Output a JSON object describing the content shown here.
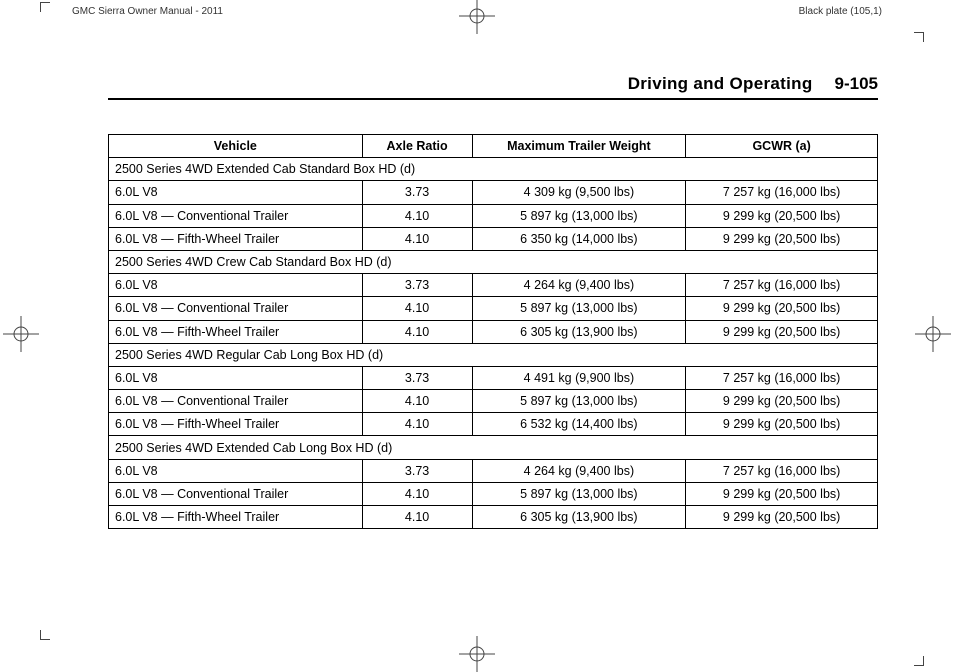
{
  "header": {
    "left": "GMC Sierra Owner Manual - 2011",
    "right": "Black plate (105,1)"
  },
  "section": {
    "title": "Driving and Operating",
    "page": "9-105"
  },
  "table": {
    "columns": [
      "Vehicle",
      "Axle Ratio",
      "Maximum Trailer Weight",
      "GCWR (a)"
    ],
    "groups": [
      {
        "label": "2500 Series 4WD Extended Cab Standard Box HD (d)",
        "rows": [
          {
            "vehicle": "6.0L V8",
            "axle": "3.73",
            "mtw": "4 309 kg (9,500 lbs)",
            "gcwr": "7 257 kg (16,000 lbs)"
          },
          {
            "vehicle": "6.0L V8 — Conventional Trailer",
            "axle": "4.10",
            "mtw": "5 897 kg (13,000 lbs)",
            "gcwr": "9 299 kg (20,500 lbs)"
          },
          {
            "vehicle": "6.0L V8 — Fifth-Wheel Trailer",
            "axle": "4.10",
            "mtw": "6 350 kg (14,000 lbs)",
            "gcwr": "9 299 kg (20,500 lbs)"
          }
        ]
      },
      {
        "label": "2500 Series 4WD Crew Cab Standard Box HD (d)",
        "rows": [
          {
            "vehicle": "6.0L V8",
            "axle": "3.73",
            "mtw": "4 264 kg (9,400 lbs)",
            "gcwr": "7 257 kg (16,000 lbs)"
          },
          {
            "vehicle": "6.0L V8 — Conventional Trailer",
            "axle": "4.10",
            "mtw": "5 897 kg (13,000 lbs)",
            "gcwr": "9 299 kg (20,500 lbs)"
          },
          {
            "vehicle": "6.0L V8 — Fifth-Wheel Trailer",
            "axle": "4.10",
            "mtw": "6 305 kg (13,900 lbs)",
            "gcwr": "9 299 kg (20,500 lbs)"
          }
        ]
      },
      {
        "label": "2500 Series 4WD Regular Cab Long Box HD (d)",
        "rows": [
          {
            "vehicle": "6.0L V8",
            "axle": "3.73",
            "mtw": "4 491 kg (9,900 lbs)",
            "gcwr": "7 257 kg (16,000 lbs)"
          },
          {
            "vehicle": "6.0L V8 — Conventional Trailer",
            "axle": "4.10",
            "mtw": "5 897 kg (13,000 lbs)",
            "gcwr": "9 299 kg (20,500 lbs)"
          },
          {
            "vehicle": "6.0L V8 — Fifth-Wheel Trailer",
            "axle": "4.10",
            "mtw": "6 532 kg (14,400 lbs)",
            "gcwr": "9 299 kg (20,500 lbs)"
          }
        ]
      },
      {
        "label": "2500 Series 4WD Extended Cab Long Box HD (d)",
        "rows": [
          {
            "vehicle": "6.0L V8",
            "axle": "3.73",
            "mtw": "4 264 kg (9,400 lbs)",
            "gcwr": "7 257 kg (16,000 lbs)"
          },
          {
            "vehicle": "6.0L V8 — Conventional Trailer",
            "axle": "4.10",
            "mtw": "5 897 kg (13,000 lbs)",
            "gcwr": "9 299 kg (20,500 lbs)"
          },
          {
            "vehicle": "6.0L V8 — Fifth-Wheel Trailer",
            "axle": "4.10",
            "mtw": "6 305 kg (13,900 lbs)",
            "gcwr": "9 299 kg (20,500 lbs)"
          }
        ]
      }
    ]
  }
}
